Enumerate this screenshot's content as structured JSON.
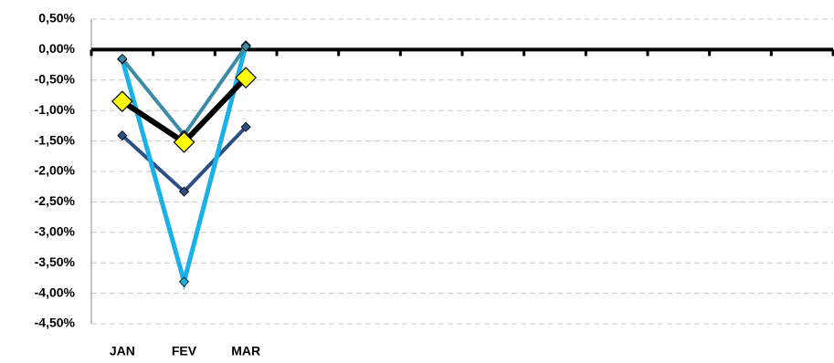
{
  "chart_data": {
    "type": "line",
    "categories": [
      "JAN",
      "FEV",
      "MAR",
      null,
      null,
      null,
      null,
      null,
      null,
      null,
      null,
      null
    ],
    "ylim": [
      -4.5,
      0.5
    ],
    "yticks": [
      {
        "value": 0.5,
        "label": "0,50%"
      },
      {
        "value": 0,
        "label": "0,00%"
      },
      {
        "value": -0.5,
        "label": "-0,50%"
      },
      {
        "value": -1,
        "label": "-1,00%"
      },
      {
        "value": -1.5,
        "label": "-1,50%"
      },
      {
        "value": -2,
        "label": "-2,00%"
      },
      {
        "value": -2.5,
        "label": "-2,50%"
      },
      {
        "value": -3,
        "label": "-3,00%"
      },
      {
        "value": -3.5,
        "label": "-3,50%"
      },
      {
        "value": -4,
        "label": "-4,00%"
      },
      {
        "value": -4.5,
        "label": "-4,50%"
      }
    ],
    "grid": true,
    "series": [
      {
        "color": "#2c4f86",
        "marker_color": "#2c4f86",
        "width": 4,
        "values": [
          -1.41,
          -2.33,
          -1.27,
          null,
          null,
          null,
          null,
          null,
          null,
          null,
          null,
          null
        ]
      },
      {
        "color": "#1ab0e8",
        "marker_color": "#1ab0e8",
        "width": 5,
        "values": [
          -0.16,
          -3.81,
          0.07,
          null,
          null,
          null,
          null,
          null,
          null,
          null,
          null,
          null
        ]
      },
      {
        "color": "#3a8aa8",
        "marker_color": "#3a8aa8",
        "width": 4,
        "values": [
          -0.15,
          -1.4,
          0.05,
          null,
          null,
          null,
          null,
          null,
          null,
          null,
          null,
          null
        ]
      },
      {
        "color": "#000000",
        "marker_color": "#ffff00",
        "width": 6,
        "values": [
          -0.85,
          -1.52,
          -0.46,
          null,
          null,
          null,
          null,
          null,
          null,
          null,
          null,
          null
        ]
      }
    ]
  }
}
